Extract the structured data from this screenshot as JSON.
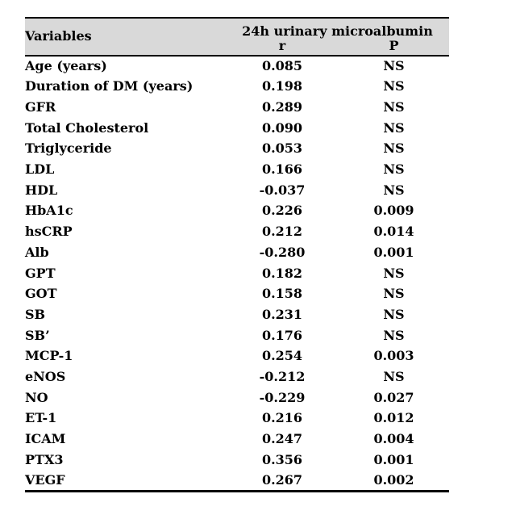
{
  "colors": {
    "header_bg": "#d9d9d9",
    "border": "#000000",
    "text": "#000000"
  },
  "table": {
    "col_variables": "Variables",
    "group_header": "24h urinary microalbumin",
    "col_r": "r",
    "col_p": "P",
    "rows": [
      {
        "variable": "Age (years)",
        "r": "0.085",
        "p": "NS"
      },
      {
        "variable": "Duration of DM (years)",
        "r": "0.198",
        "p": "NS"
      },
      {
        "variable": "GFR",
        "r": "0.289",
        "p": "NS"
      },
      {
        "variable": "Total Cholesterol",
        "r": "0.090",
        "p": "NS"
      },
      {
        "variable": "Triglyceride",
        "r": "0.053",
        "p": "NS"
      },
      {
        "variable": "LDL",
        "r": "0.166",
        "p": "NS"
      },
      {
        "variable": "HDL",
        "r": "-0.037",
        "p": "NS"
      },
      {
        "variable": "HbA1c",
        "r": "0.226",
        "p": "0.009"
      },
      {
        "variable": "hsCRP",
        "r": "0.212",
        "p": "0.014"
      },
      {
        "variable": "Alb",
        "r": "-0.280",
        "p": "0.001"
      },
      {
        "variable": "GPT",
        "r": "0.182",
        "p": "NS"
      },
      {
        "variable": "GOT",
        "r": "0.158",
        "p": "NS"
      },
      {
        "variable": "SB",
        "r": "0.231",
        "p": "NS"
      },
      {
        "variable": "SB’",
        "r": "0.176",
        "p": "NS"
      },
      {
        "variable": "MCP-1",
        "r": "0.254",
        "p": "0.003"
      },
      {
        "variable": "eNOS",
        "r": "-0.212",
        "p": "NS"
      },
      {
        "variable": "NO",
        "r": "-0.229",
        "p": "0.027"
      },
      {
        "variable": "ET-1",
        "r": "0.216",
        "p": "0.012"
      },
      {
        "variable": "ICAM",
        "r": "0.247",
        "p": "0.004"
      },
      {
        "variable": "PTX3",
        "r": "0.356",
        "p": "0.001"
      },
      {
        "variable": "VEGF",
        "r": "0.267",
        "p": "0.002"
      }
    ]
  }
}
